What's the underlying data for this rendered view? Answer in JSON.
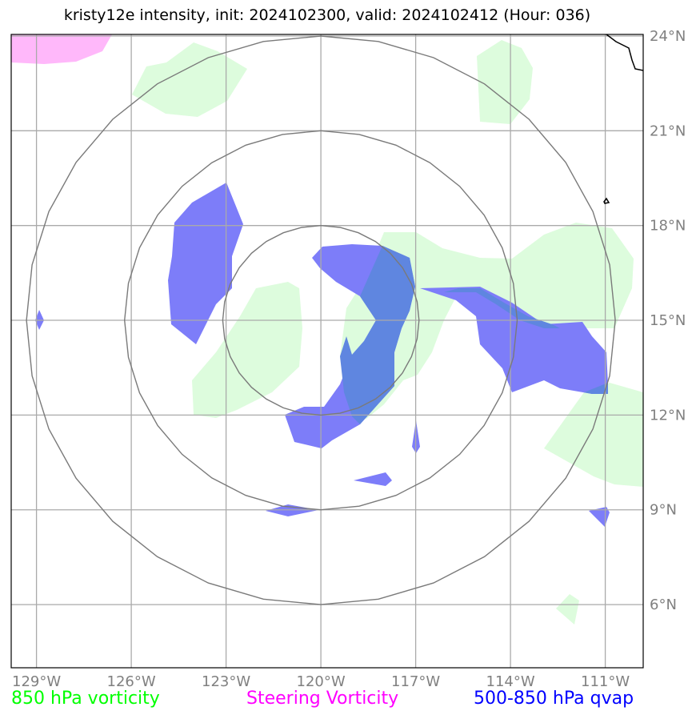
{
  "title": "kristy12e intensity, init: 2024102300, valid: 2024102412 (Hour: 036)",
  "map": {
    "lon_ticks": [
      "129°W",
      "126°W",
      "123°W",
      "120°W",
      "117°W",
      "114°W",
      "111°W"
    ],
    "lat_ticks": [
      "24°N",
      "21°N",
      "18°N",
      "15°N",
      "12°N",
      "9°N",
      "6°N"
    ],
    "lon_range": [
      -129.8,
      -109.8
    ],
    "lat_range": [
      4.0,
      24.05
    ],
    "center": {
      "lon": -120.0,
      "lat": 15.0
    },
    "range_ring_radii_deg": [
      3,
      6,
      9
    ]
  },
  "legend": [
    {
      "label": "850 hPa vorticity",
      "color": "#00ff00"
    },
    {
      "label": "Steering Vorticity",
      "color": "#ff00ff"
    },
    {
      "label": "500-850 hPa qvap",
      "color": "#0000ff"
    }
  ],
  "colors": {
    "vorticity_fill": "#ddfcdd",
    "steering_fill": "#ffb8fa",
    "qvap_fill": "#7d7df9",
    "overlap_fill": "#5f86e0",
    "grid": "#aaaaaa",
    "rings": "#7a7a7a",
    "coast": "#000000"
  }
}
